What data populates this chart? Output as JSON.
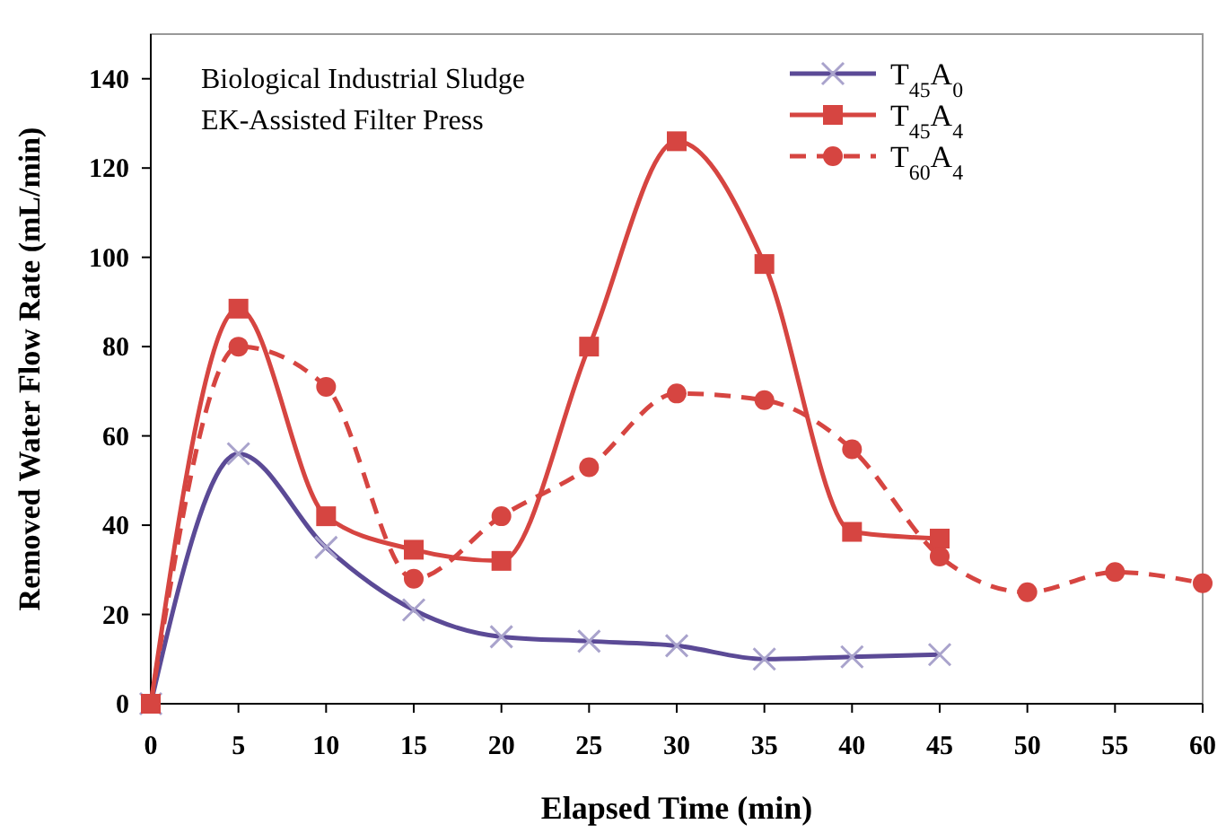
{
  "chart_data": {
    "type": "line",
    "xlabel": "Elapsed Time (min)",
    "ylabel": "Removed Water Flow Rate (mL/min)",
    "annotations": [
      "Biological Industrial Sludge",
      "EK-Assisted Filter Press"
    ],
    "x": [
      0,
      5,
      10,
      15,
      20,
      25,
      30,
      35,
      40,
      45,
      50,
      55,
      60
    ],
    "series": [
      {
        "name": "T$_{45}$A$_{0}$",
        "color": "#5b4a96",
        "marker": "cross",
        "line_style": "solid",
        "values": [
          0,
          56,
          35,
          21,
          15,
          14,
          13,
          10,
          10.5,
          11,
          null,
          null,
          null
        ]
      },
      {
        "name": "T$_{45}$A$_{4}$",
        "color": "#d64541",
        "marker": "square",
        "line_style": "solid",
        "values": [
          0,
          88.5,
          42,
          34.5,
          32,
          80,
          126,
          98.5,
          38.5,
          37,
          null,
          null,
          null
        ]
      },
      {
        "name": "T$_{60}$A$_{4}$",
        "color": "#d64541",
        "marker": "circle",
        "line_style": "dashed",
        "values": [
          0,
          80,
          71,
          28,
          42,
          53,
          69.5,
          68,
          57,
          33,
          25,
          29.5,
          27
        ]
      }
    ],
    "xlim": [
      0,
      60
    ],
    "xticks": [
      0,
      5,
      10,
      15,
      20,
      25,
      30,
      35,
      40,
      45,
      50,
      55,
      60
    ],
    "ylim": [
      0,
      150
    ],
    "yticks": [
      0,
      20,
      40,
      60,
      80,
      100,
      120,
      140
    ],
    "grid": false,
    "legend": "top right"
  }
}
